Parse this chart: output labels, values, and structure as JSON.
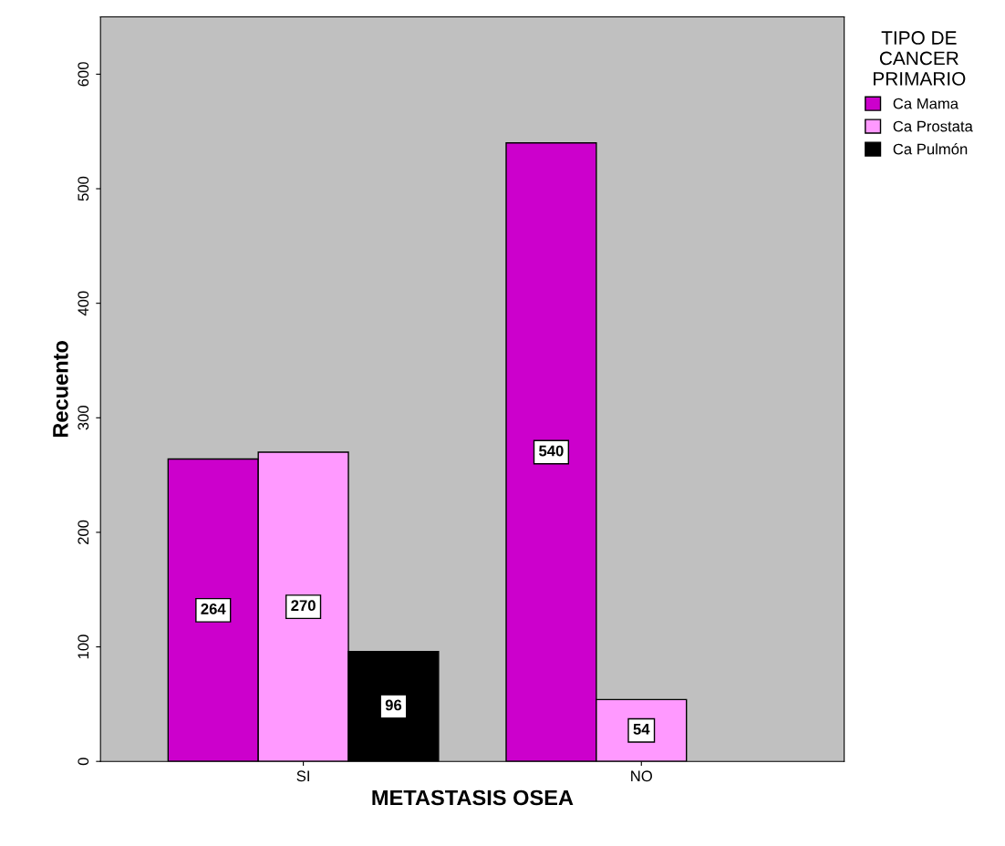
{
  "chart_data": {
    "type": "bar",
    "xlabel": "METASTASIS OSEA",
    "ylabel": "Recuento",
    "legend_title": "TIPO DE\nCANCER\nPRIMARIO",
    "categories": [
      "SI",
      "NO"
    ],
    "series": [
      {
        "name": "Ca Mama",
        "color": "#cc00cc",
        "values": [
          264,
          540
        ]
      },
      {
        "name": "Ca Prostata",
        "color": "#ff99ff",
        "values": [
          270,
          54
        ]
      },
      {
        "name": "Ca Pulmón",
        "color": "#000000",
        "values": [
          96,
          null
        ]
      }
    ],
    "ylim": [
      0,
      650
    ],
    "yticks": [
      0,
      100,
      200,
      300,
      400,
      500,
      600
    ],
    "grid": false,
    "legend": "top right",
    "data_labels": true
  }
}
